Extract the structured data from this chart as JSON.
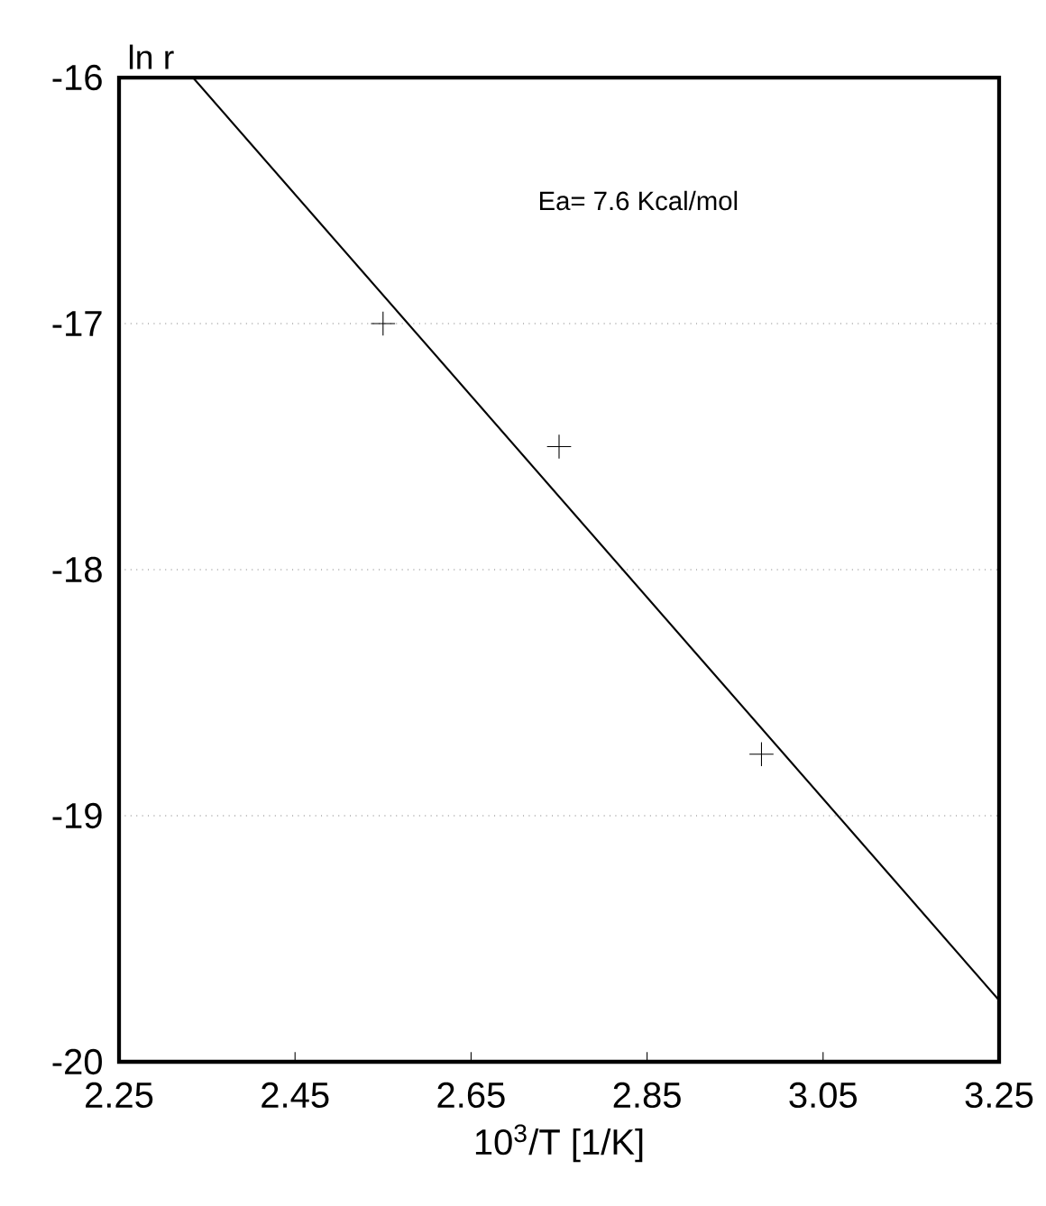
{
  "chart_data": {
    "type": "scatter",
    "xlabel": "10$^{3}$/T  [1/K]",
    "ylabel": "ln r",
    "annotations": [
      "Ea= 7.6 Kcal/mol"
    ],
    "series": [
      {
        "x": [
          2.55,
          2.75,
          2.98
        ],
        "values": [
          -17.0,
          -17.5,
          -18.75
        ],
        "color": "#000000",
        "marker": "cross"
      },
      {
        "type": "line",
        "x": [
          2.334,
          3.25
        ],
        "values": [
          -16.0,
          -19.75
        ],
        "color": "#000000",
        "marker": "none",
        "line_style": "solid"
      }
    ],
    "xlim": [
      2.25,
      3.25
    ],
    "xticks": [
      2.25,
      2.45,
      2.65,
      2.85,
      3.05,
      3.25
    ],
    "ylim": [
      -20,
      -16
    ],
    "yticks": [
      {
        "value": -20,
        "label": "-20"
      },
      {
        "value": -19,
        "label": "-19"
      },
      {
        "value": -18,
        "label": "-18"
      },
      {
        "value": -17,
        "label": "-17"
      },
      {
        "value": -16,
        "label": "-16"
      }
    ],
    "grid": "y"
  }
}
